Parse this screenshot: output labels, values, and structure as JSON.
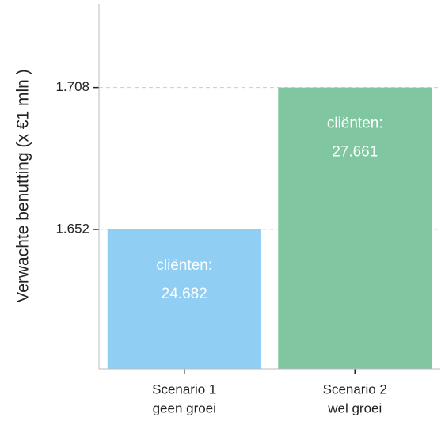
{
  "chart_data": {
    "type": "bar",
    "y_label": "Verwachte benutting (x €1 mln )",
    "categories": [
      [
        "Scenario 1",
        "geen groei"
      ],
      [
        "Scenario 2",
        "wel groei"
      ]
    ],
    "values": [
      1.652,
      1.708
    ],
    "colors": [
      "#90cff3",
      "#80c6a0"
    ],
    "annotations": [
      [
        "cliënten:",
        "24.682"
      ],
      [
        "cliënten:",
        "27.661"
      ]
    ],
    "ylim": [
      1.597,
      1.741
    ],
    "yticks": [
      1.652,
      1.708
    ],
    "grid": true
  }
}
